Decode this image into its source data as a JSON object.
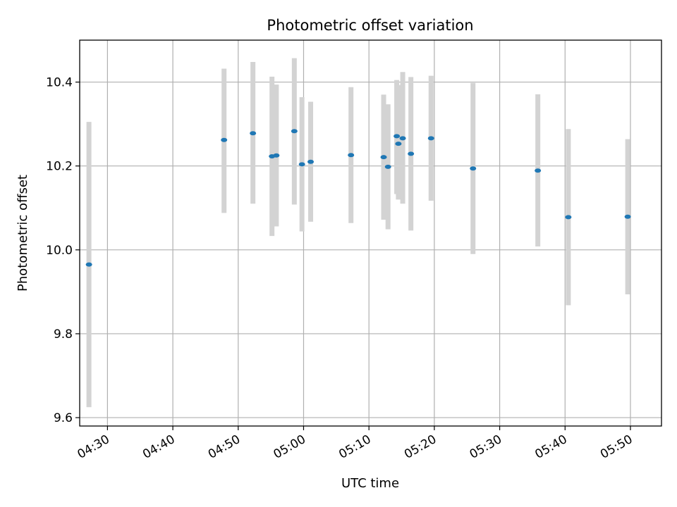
{
  "chart_data": {
    "type": "scatter",
    "title": "Photometric offset variation",
    "xlabel": "UTC time",
    "ylabel": "Photometric offset",
    "xlim": [
      "04:25:45",
      "05:54:45"
    ],
    "ylim": [
      9.58,
      10.5
    ],
    "x_ticks": [
      "04:30",
      "04:40",
      "04:50",
      "05:00",
      "05:10",
      "05:20",
      "05:30",
      "05:40",
      "05:50"
    ],
    "y_ticks": [
      "9.6",
      "9.8",
      "10.0",
      "10.2",
      "10.4"
    ],
    "grid": true,
    "legend": "none",
    "colors": {
      "point": "#1f77b4",
      "errorbar": "#d3d3d3",
      "grid": "#b0b0b0"
    },
    "series": [
      {
        "points": [
          {
            "x": "04:27:10",
            "y": 9.965,
            "err_low": 9.625,
            "err_high": 10.305
          },
          {
            "x": "04:47:50",
            "y": 10.262,
            "err_low": 10.088,
            "err_high": 10.432
          },
          {
            "x": "04:52:15",
            "y": 10.278,
            "err_low": 10.11,
            "err_high": 10.448
          },
          {
            "x": "04:55:10",
            "y": 10.223,
            "err_low": 10.033,
            "err_high": 10.413
          },
          {
            "x": "04:55:50",
            "y": 10.225,
            "err_low": 10.056,
            "err_high": 10.394
          },
          {
            "x": "04:58:35",
            "y": 10.283,
            "err_low": 10.108,
            "err_high": 10.457
          },
          {
            "x": "04:59:45",
            "y": 10.204,
            "err_low": 10.044,
            "err_high": 10.364
          },
          {
            "x": "05:01:05",
            "y": 10.21,
            "err_low": 10.067,
            "err_high": 10.353
          },
          {
            "x": "05:07:15",
            "y": 10.226,
            "err_low": 10.064,
            "err_high": 10.388
          },
          {
            "x": "05:12:15",
            "y": 10.221,
            "err_low": 10.072,
            "err_high": 10.37
          },
          {
            "x": "05:12:55",
            "y": 10.198,
            "err_low": 10.049,
            "err_high": 10.347
          },
          {
            "x": "05:14:15",
            "y": 10.271,
            "err_low": 10.133,
            "err_high": 10.405
          },
          {
            "x": "05:14:30",
            "y": 10.253,
            "err_low": 10.12,
            "err_high": 10.393
          },
          {
            "x": "05:15:10",
            "y": 10.266,
            "err_low": 10.11,
            "err_high": 10.424
          },
          {
            "x": "05:16:25",
            "y": 10.229,
            "err_low": 10.046,
            "err_high": 10.412
          },
          {
            "x": "05:19:30",
            "y": 10.266,
            "err_low": 10.117,
            "err_high": 10.415
          },
          {
            "x": "05:25:55",
            "y": 10.194,
            "err_low": 9.99,
            "err_high": 10.398
          },
          {
            "x": "05:35:50",
            "y": 10.189,
            "err_low": 10.008,
            "err_high": 10.371
          },
          {
            "x": "05:40:30",
            "y": 10.078,
            "err_low": 9.868,
            "err_high": 10.288
          },
          {
            "x": "05:49:35",
            "y": 10.079,
            "err_low": 9.894,
            "err_high": 10.264
          }
        ]
      }
    ]
  }
}
